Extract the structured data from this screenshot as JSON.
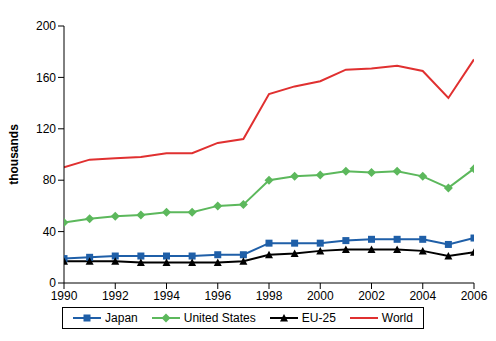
{
  "chart_data": {
    "type": "line",
    "y_label": "thousands",
    "x": [
      1990,
      1991,
      1992,
      1993,
      1994,
      1995,
      1996,
      1997,
      1998,
      1999,
      2000,
      2001,
      2002,
      2003,
      2004,
      2005,
      2006
    ],
    "xlim": [
      1990,
      2006
    ],
    "xticks": [
      1990,
      1992,
      1994,
      1996,
      1998,
      2000,
      2002,
      2004,
      2006
    ],
    "ylim": [
      0,
      200
    ],
    "yticks": [
      0,
      40,
      80,
      120,
      160,
      200
    ],
    "grid": false,
    "legend": "bottom",
    "series": [
      {
        "name": "Japan",
        "color": "#1f5fa8",
        "marker": "square",
        "values": [
          19,
          20,
          21,
          21,
          21,
          21,
          22,
          22,
          31,
          31,
          31,
          33,
          34,
          34,
          34,
          30,
          35
        ]
      },
      {
        "name": "United States",
        "color": "#5cb85c",
        "marker": "diamond",
        "values": [
          47,
          50,
          52,
          53,
          55,
          55,
          60,
          61,
          80,
          83,
          84,
          87,
          86,
          87,
          83,
          74,
          89
        ]
      },
      {
        "name": "EU-25",
        "color": "#000000",
        "marker": "triangle",
        "values": [
          17,
          17,
          17,
          16,
          16,
          16,
          16,
          17,
          22,
          23,
          25,
          26,
          26,
          26,
          25,
          21,
          24
        ]
      },
      {
        "name": "World",
        "color": "#e03030",
        "marker": "none",
        "values": [
          90,
          96,
          97,
          98,
          101,
          101,
          109,
          112,
          147,
          153,
          157,
          166,
          167,
          169,
          165,
          144,
          174
        ]
      }
    ]
  }
}
